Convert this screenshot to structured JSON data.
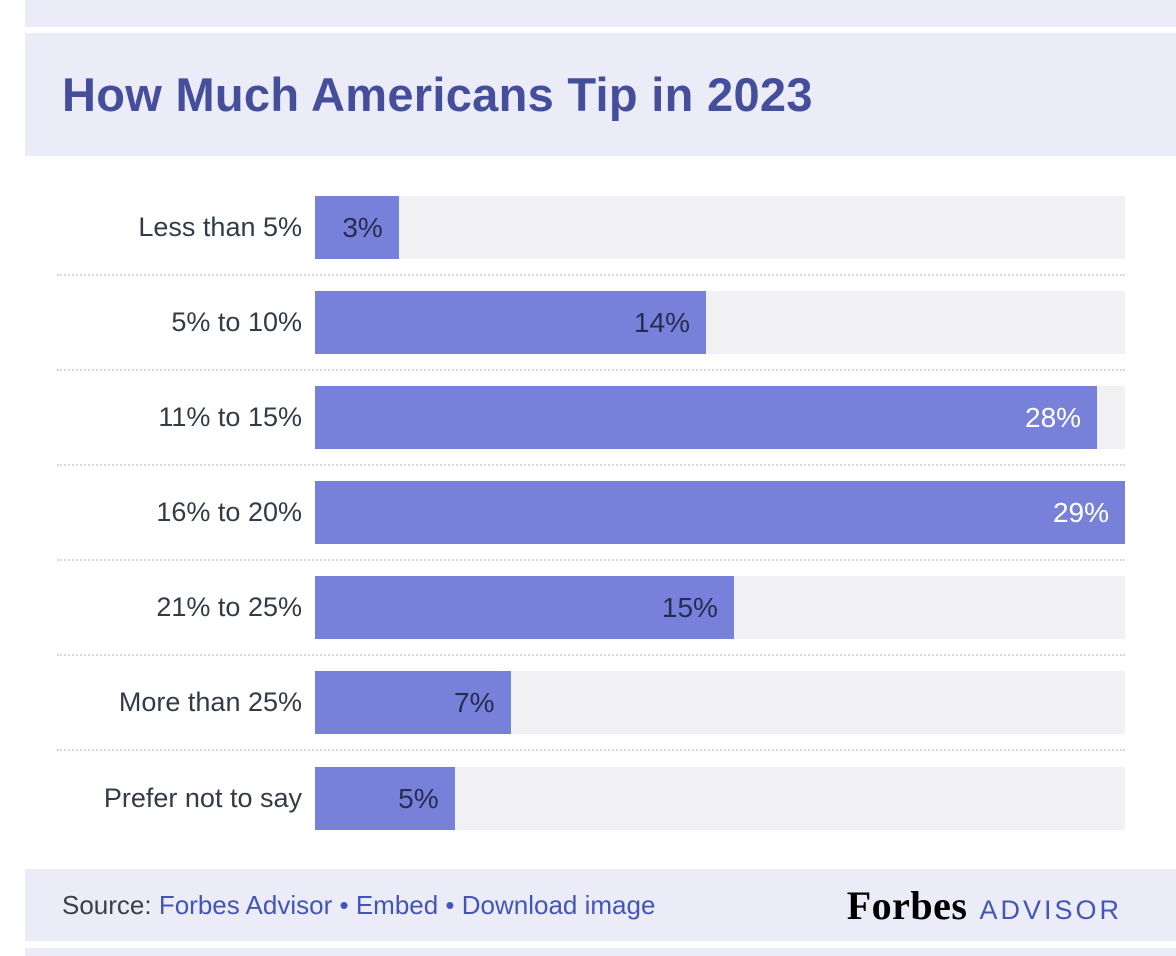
{
  "page": {
    "background": "#ffffff",
    "accent_band_color": "#ebecf7"
  },
  "header": {
    "title": "How Much Americans Tip in 2023",
    "title_color": "#454e9b",
    "background": "#ebecf7"
  },
  "chart_data": {
    "type": "bar",
    "orientation": "horizontal",
    "title": "How Much Americans Tip in 2023",
    "categories": [
      "Less than 5%",
      "5% to 10%",
      "11% to 15%",
      "16% to 20%",
      "21% to 25%",
      "More than 25%",
      "Prefer not to say"
    ],
    "values": [
      3,
      14,
      28,
      29,
      15,
      7,
      5
    ],
    "value_labels": [
      "3%",
      "14%",
      "28%",
      "29%",
      "15%",
      "7%",
      "5%"
    ],
    "value_label_colors": [
      "#262d52",
      "#262d52",
      "#ffffff",
      "#ffffff",
      "#262d52",
      "#262d52",
      "#262d52"
    ],
    "xlim": [
      0,
      29
    ],
    "bar_color": "#7881d9",
    "track_color": "#f1f1f3",
    "grid": "dotted-row-separators",
    "legend": "none"
  },
  "footer": {
    "background": "#ebecf7",
    "source_label": "Source:",
    "separator": "•",
    "link_color": "#4456b4",
    "links": [
      {
        "label": "Forbes Advisor"
      },
      {
        "label": "Embed"
      },
      {
        "label": "Download image"
      }
    ],
    "brand_serif": "Forbes",
    "brand_suffix": "ADVISOR",
    "brand_suffix_color": "#4456b4"
  }
}
